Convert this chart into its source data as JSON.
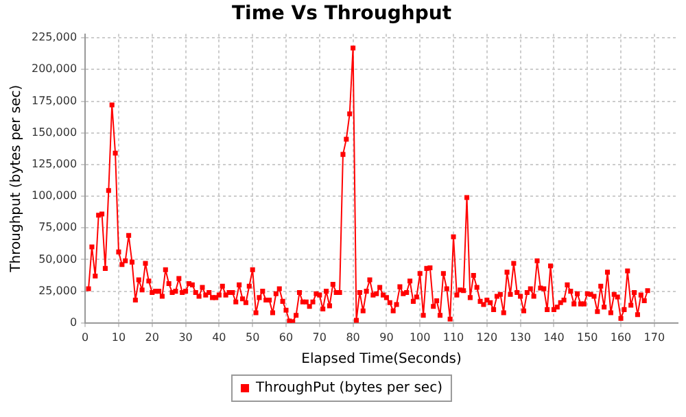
{
  "chart_data": {
    "type": "line",
    "title": "Time Vs Throughput",
    "xlabel": "Elapsed Time(Seconds)",
    "ylabel": "Throughput (bytes per sec)",
    "x": [
      1,
      2,
      3,
      4,
      5,
      6,
      7,
      8,
      9,
      10,
      11,
      12,
      13,
      14,
      15,
      16,
      17,
      18,
      19,
      20,
      21,
      22,
      23,
      24,
      25,
      26,
      27,
      28,
      29,
      30,
      31,
      32,
      33,
      34,
      35,
      36,
      37,
      38,
      39,
      40,
      41,
      42,
      43,
      44,
      45,
      46,
      47,
      48,
      49,
      50,
      51,
      52,
      53,
      54,
      55,
      56,
      57,
      58,
      59,
      60,
      61,
      62,
      63,
      64,
      65,
      66,
      67,
      68,
      69,
      70,
      71,
      72,
      73,
      74,
      75,
      76,
      77,
      78,
      79,
      80,
      81,
      82,
      83,
      84,
      85,
      86,
      87,
      88,
      89,
      90,
      91,
      92,
      93,
      94,
      95,
      96,
      97,
      98,
      99,
      100,
      101,
      102,
      103,
      104,
      105,
      106,
      107,
      108,
      109,
      110,
      111,
      112,
      113,
      114,
      115,
      116,
      117,
      118,
      119,
      120,
      121,
      122,
      123,
      124,
      125,
      126,
      127,
      128,
      129,
      130,
      131,
      132,
      133,
      134,
      135,
      136,
      137,
      138,
      139,
      140,
      141,
      142,
      143,
      144,
      145,
      146,
      147,
      148,
      149,
      150,
      151,
      152,
      153,
      154,
      155,
      156,
      157,
      158,
      159,
      160,
      161,
      162,
      163,
      164,
      165,
      166,
      167,
      168
    ],
    "series": [
      {
        "name": "ThroughPut (bytes per sec)",
        "color": "#ff0000",
        "values": [
          27000,
          60000,
          37000,
          85000,
          86000,
          43000,
          104500,
          172000,
          134000,
          56000,
          46000,
          49000,
          69000,
          48000,
          18000,
          34000,
          26000,
          47000,
          33000,
          24000,
          25000,
          25000,
          21000,
          42000,
          31000,
          24000,
          25000,
          35000,
          24000,
          25000,
          31000,
          30000,
          24000,
          21000,
          28000,
          22000,
          24000,
          20000,
          20000,
          22000,
          29000,
          22000,
          24000,
          24000,
          16500,
          30000,
          19000,
          16000,
          29000,
          42000,
          8000,
          20000,
          25000,
          18000,
          18000,
          8000,
          23000,
          27000,
          17000,
          10000,
          1500,
          1000,
          6000,
          24000,
          16500,
          16500,
          13000,
          16500,
          23000,
          22000,
          11000,
          25000,
          13500,
          30500,
          24000,
          24000,
          133000,
          145000,
          165000,
          217000,
          2000,
          24000,
          9500,
          25000,
          34000,
          22000,
          23000,
          28000,
          22000,
          20000,
          16000,
          9500,
          14500,
          28500,
          23000,
          24000,
          33000,
          17000,
          20500,
          39000,
          6000,
          43000,
          43500,
          13000,
          17500,
          6000,
          39000,
          27000,
          3000,
          68000,
          22000,
          26000,
          25500,
          99000,
          20000,
          37500,
          28000,
          17000,
          14500,
          18000,
          16000,
          10500,
          21000,
          22500,
          8000,
          40000,
          22500,
          47000,
          24000,
          21000,
          9500,
          24000,
          27000,
          21000,
          49000,
          27500,
          27000,
          10500,
          45000,
          10500,
          12500,
          16000,
          18000,
          30000,
          25000,
          15000,
          23000,
          15000,
          15000,
          23000,
          22500,
          21000,
          9000,
          29000,
          12500,
          40000,
          8000,
          22500,
          20500,
          3500,
          10500,
          41000,
          14000,
          24000,
          6500,
          22000,
          17500,
          25500
        ]
      }
    ],
    "xlim": [
      0,
      177
    ],
    "xticks": [
      0,
      10,
      20,
      30,
      40,
      50,
      60,
      70,
      80,
      90,
      100,
      110,
      120,
      130,
      140,
      150,
      160,
      170
    ],
    "ylim": [
      0,
      228000
    ],
    "yticks": [
      0,
      {
        "value": 25000,
        "label": "25,000"
      },
      {
        "value": 50000,
        "label": "50,000"
      },
      {
        "value": 75000,
        "label": "75,000"
      },
      {
        "value": 100000,
        "label": "100,000"
      },
      {
        "value": 125000,
        "label": "125,000"
      },
      {
        "value": 150000,
        "label": "150,000"
      },
      {
        "value": 175000,
        "label": "175,000"
      },
      {
        "value": 200000,
        "label": "200,000"
      },
      {
        "value": 225000,
        "label": "225,000"
      }
    ],
    "grid": true,
    "legend": "bottom",
    "marker": "square",
    "line_style": "solid"
  }
}
